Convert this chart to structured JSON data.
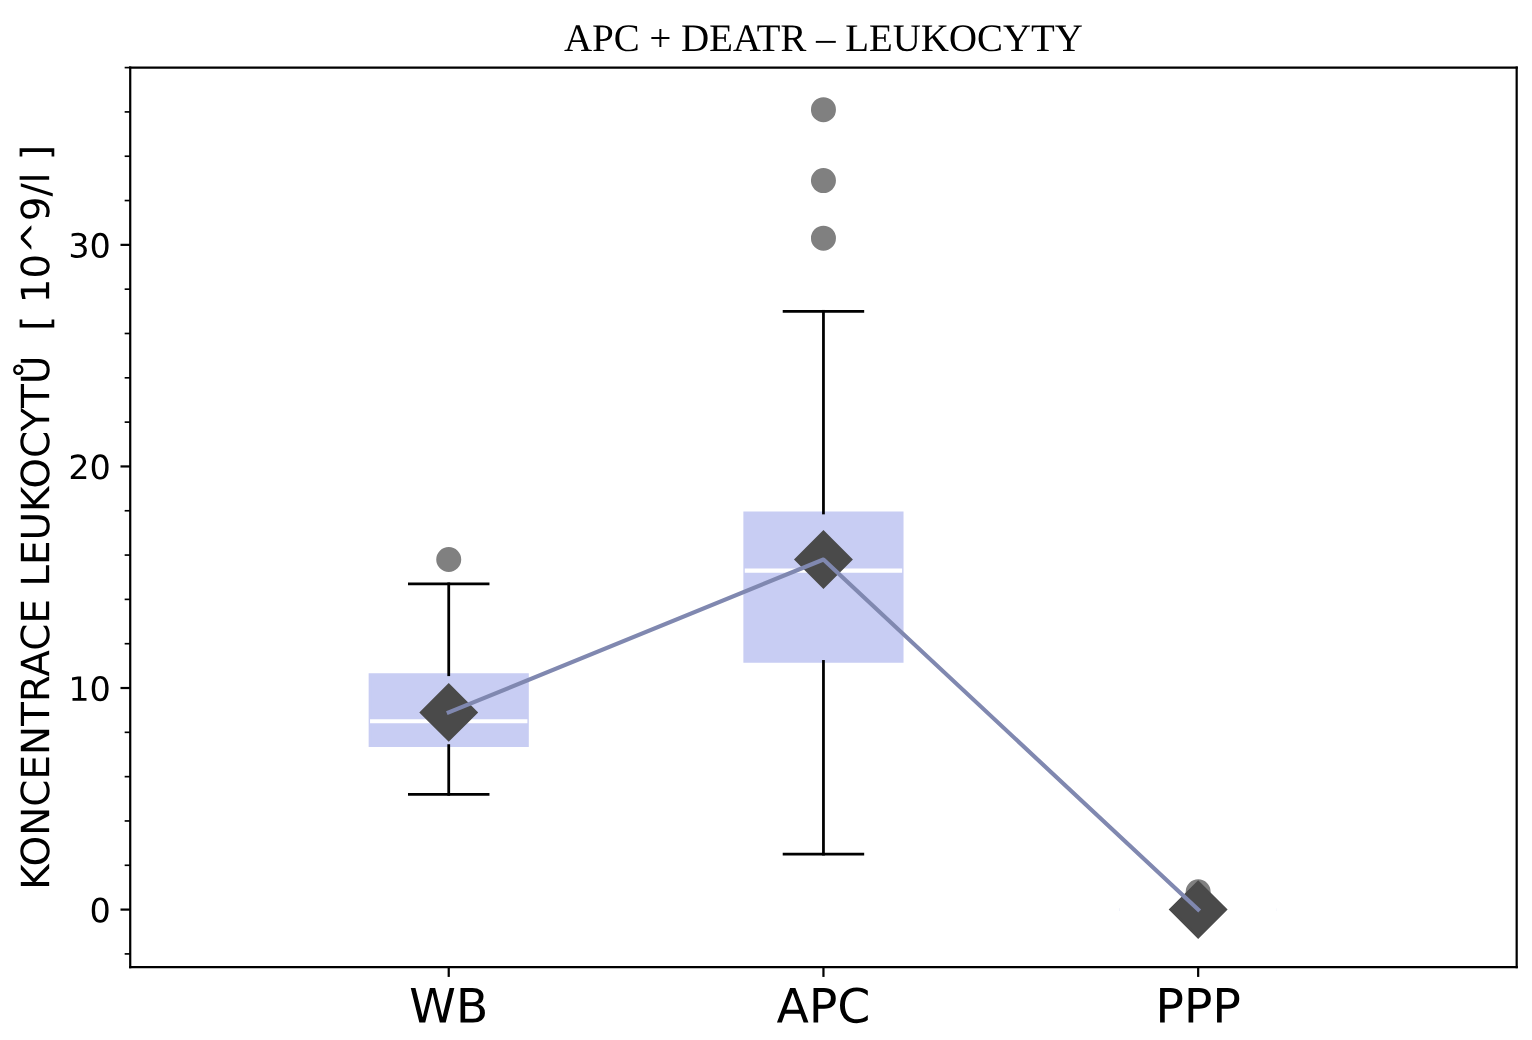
{
  "chart_data": {
    "type": "box",
    "title": "APC + DEATR – LEUKOCYTY",
    "ylabel": "KONCENTRACE LEUKOCYTŮ  [ 10^9/l ]",
    "categories": [
      "WB",
      "APC",
      "PPP"
    ],
    "color": "#c8cdf3",
    "boxes": [
      {
        "low": 5.2,
        "q1": 7.4,
        "median": 8.5,
        "q3": 10.6,
        "high": 14.7,
        "mean": 8.9,
        "outliers": [
          15.8
        ]
      },
      {
        "low": 2.5,
        "q1": 11.2,
        "median": 15.3,
        "q3": 17.9,
        "high": 27.0,
        "mean": 15.8,
        "outliers": [
          30.3,
          32.9,
          36.1
        ]
      },
      {
        "low": 0,
        "q1": 0,
        "median": 0,
        "q3": 0,
        "high": 0,
        "mean": 0,
        "outliers": [
          0.8
        ]
      }
    ],
    "series": [
      {
        "type": "line",
        "color": "#8088b0",
        "values": [
          8.9,
          15.8,
          0
        ]
      }
    ],
    "ylim": [
      -2.6,
      38
    ],
    "yticks": [
      0,
      10,
      20,
      30
    ],
    "grid": false
  }
}
